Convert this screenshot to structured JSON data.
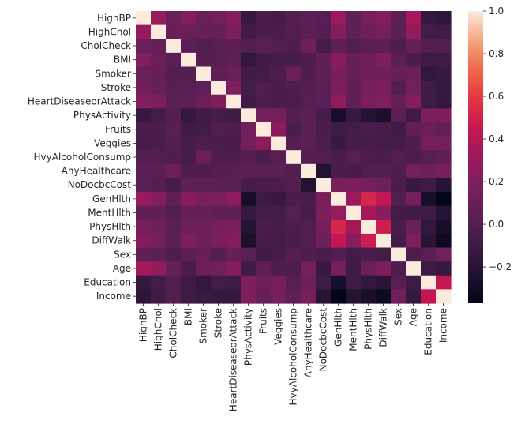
{
  "chart_data": {
    "type": "heatmap",
    "title": "",
    "xlabel": "",
    "ylabel": "",
    "colormap": "rocket",
    "vmin": -0.37,
    "vmax": 1.0,
    "colorbar": {
      "ticks": [
        1.0,
        0.8,
        0.6,
        0.4,
        0.2,
        0.0,
        -0.2
      ],
      "tick_labels": [
        "1.0",
        "0.8",
        "0.6",
        "0.4",
        "0.2",
        "0.0",
        "−0.2"
      ],
      "placement": "right"
    },
    "labels": [
      "HighBP",
      "HighChol",
      "CholCheck",
      "BMI",
      "Smoker",
      "Stroke",
      "HeartDiseaseorAttack",
      "PhysActivity",
      "Fruits",
      "Veggies",
      "HvyAlcoholConsump",
      "AnyHealthcare",
      "NoDocbcCost",
      "GenHlth",
      "MentHlth",
      "PhysHlth",
      "DiffWalk",
      "Sex",
      "Age",
      "Education",
      "Income"
    ],
    "matrix": [
      [
        1.0,
        0.3,
        0.1,
        0.21,
        0.1,
        0.13,
        0.21,
        -0.13,
        -0.04,
        -0.06,
        -0.0,
        0.04,
        0.02,
        0.3,
        0.06,
        0.16,
        0.22,
        0.05,
        0.34,
        -0.14,
        -0.17
      ],
      [
        0.3,
        1.0,
        0.09,
        0.11,
        0.09,
        0.09,
        0.18,
        -0.08,
        -0.04,
        -0.04,
        -0.01,
        0.04,
        0.01,
        0.21,
        0.06,
        0.12,
        0.14,
        0.03,
        0.27,
        -0.07,
        -0.09
      ],
      [
        0.1,
        0.09,
        1.0,
        0.03,
        -0.01,
        0.02,
        0.04,
        0.0,
        0.02,
        0.0,
        -0.02,
        0.12,
        -0.06,
        0.05,
        -0.01,
        0.03,
        0.04,
        -0.02,
        0.09,
        0.0,
        0.01
      ],
      [
        0.21,
        0.11,
        0.03,
        1.0,
        0.01,
        0.02,
        0.05,
        -0.15,
        -0.09,
        -0.06,
        -0.05,
        -0.02,
        0.06,
        0.24,
        0.09,
        0.12,
        0.2,
        0.04,
        -0.04,
        -0.1,
        -0.1
      ],
      [
        0.1,
        0.09,
        -0.01,
        0.01,
        1.0,
        0.06,
        0.11,
        -0.09,
        -0.08,
        -0.03,
        0.1,
        -0.02,
        0.05,
        0.16,
        0.09,
        0.12,
        0.12,
        0.09,
        0.12,
        -0.16,
        -0.12
      ],
      [
        0.13,
        0.09,
        0.02,
        0.02,
        0.06,
        1.0,
        0.2,
        -0.07,
        -0.01,
        -0.04,
        -0.02,
        0.01,
        0.03,
        0.18,
        0.07,
        0.15,
        0.18,
        0.0,
        0.13,
        -0.08,
        -0.13
      ],
      [
        0.21,
        0.18,
        0.04,
        0.05,
        0.11,
        0.2,
        1.0,
        -0.09,
        -0.02,
        -0.04,
        -0.03,
        0.02,
        0.03,
        0.26,
        0.06,
        0.18,
        0.21,
        0.09,
        0.22,
        -0.1,
        -0.14
      ],
      [
        -0.13,
        -0.08,
        0.0,
        -0.15,
        -0.09,
        -0.07,
        -0.09,
        1.0,
        0.14,
        0.15,
        0.01,
        0.04,
        -0.06,
        -0.27,
        -0.13,
        -0.22,
        -0.25,
        0.03,
        -0.09,
        0.2,
        0.2
      ],
      [
        -0.04,
        -0.04,
        0.02,
        -0.09,
        -0.08,
        -0.01,
        -0.02,
        0.14,
        1.0,
        0.25,
        -0.04,
        0.03,
        -0.04,
        -0.1,
        -0.07,
        -0.04,
        -0.05,
        -0.09,
        0.06,
        0.11,
        0.08
      ],
      [
        -0.06,
        -0.04,
        0.0,
        -0.06,
        -0.03,
        -0.04,
        -0.04,
        0.15,
        0.25,
        1.0,
        0.02,
        0.03,
        -0.03,
        -0.12,
        -0.06,
        -0.06,
        -0.08,
        -0.06,
        -0.02,
        0.15,
        0.15
      ],
      [
        -0.0,
        -0.01,
        -0.02,
        -0.05,
        0.1,
        -0.02,
        -0.03,
        0.01,
        -0.04,
        0.02,
        1.0,
        -0.0,
        0.0,
        -0.04,
        0.02,
        -0.03,
        -0.04,
        0.01,
        -0.03,
        0.02,
        0.05
      ],
      [
        0.04,
        0.04,
        0.12,
        -0.02,
        -0.02,
        0.01,
        0.02,
        0.04,
        0.03,
        0.03,
        -0.0,
        1.0,
        -0.23,
        -0.04,
        -0.05,
        -0.01,
        0.01,
        -0.02,
        0.14,
        0.12,
        0.16
      ],
      [
        0.02,
        0.01,
        -0.06,
        0.06,
        0.05,
        0.03,
        0.03,
        -0.06,
        -0.04,
        -0.03,
        0.0,
        -0.23,
        1.0,
        0.17,
        0.19,
        0.15,
        0.12,
        -0.04,
        -0.12,
        -0.1,
        -0.2
      ],
      [
        0.3,
        0.21,
        0.05,
        0.24,
        0.16,
        0.18,
        0.26,
        -0.27,
        -0.1,
        -0.12,
        -0.04,
        -0.04,
        0.17,
        1.0,
        0.3,
        0.52,
        0.45,
        -0.01,
        0.15,
        -0.28,
        -0.37
      ],
      [
        0.06,
        0.06,
        -0.01,
        0.09,
        0.09,
        0.07,
        0.06,
        -0.13,
        -0.07,
        -0.06,
        0.02,
        -0.05,
        0.19,
        0.3,
        1.0,
        0.35,
        0.23,
        -0.08,
        -0.09,
        -0.1,
        -0.21
      ],
      [
        0.16,
        0.12,
        0.03,
        0.12,
        0.12,
        0.15,
        0.18,
        -0.22,
        -0.04,
        -0.06,
        -0.03,
        -0.01,
        0.15,
        0.52,
        0.35,
        1.0,
        0.48,
        -0.04,
        0.1,
        -0.16,
        -0.27
      ],
      [
        0.22,
        0.14,
        0.04,
        0.2,
        0.12,
        0.18,
        0.21,
        -0.25,
        -0.05,
        -0.08,
        -0.04,
        0.01,
        0.12,
        0.45,
        0.23,
        0.48,
        1.0,
        -0.07,
        0.2,
        -0.19,
        -0.32
      ],
      [
        0.05,
        0.03,
        -0.02,
        0.04,
        0.09,
        0.0,
        0.09,
        0.03,
        -0.09,
        -0.06,
        0.01,
        -0.02,
        -0.04,
        -0.01,
        -0.08,
        -0.04,
        -0.07,
        1.0,
        -0.03,
        0.02,
        0.13
      ],
      [
        0.34,
        0.27,
        0.09,
        -0.04,
        0.12,
        0.13,
        0.22,
        -0.09,
        0.06,
        -0.02,
        -0.03,
        0.14,
        -0.12,
        0.15,
        -0.09,
        0.1,
        0.2,
        -0.03,
        1.0,
        -0.1,
        -0.13
      ],
      [
        -0.14,
        -0.07,
        0.0,
        -0.1,
        -0.16,
        -0.08,
        -0.1,
        0.2,
        0.11,
        0.15,
        0.02,
        0.12,
        -0.1,
        -0.28,
        -0.1,
        -0.16,
        -0.19,
        0.02,
        -0.1,
        1.0,
        0.45
      ],
      [
        -0.17,
        -0.09,
        0.01,
        -0.1,
        -0.12,
        -0.13,
        -0.14,
        0.2,
        0.08,
        0.15,
        0.05,
        0.16,
        -0.2,
        -0.37,
        -0.21,
        -0.27,
        -0.32,
        0.13,
        -0.13,
        0.45,
        1.0
      ]
    ]
  }
}
